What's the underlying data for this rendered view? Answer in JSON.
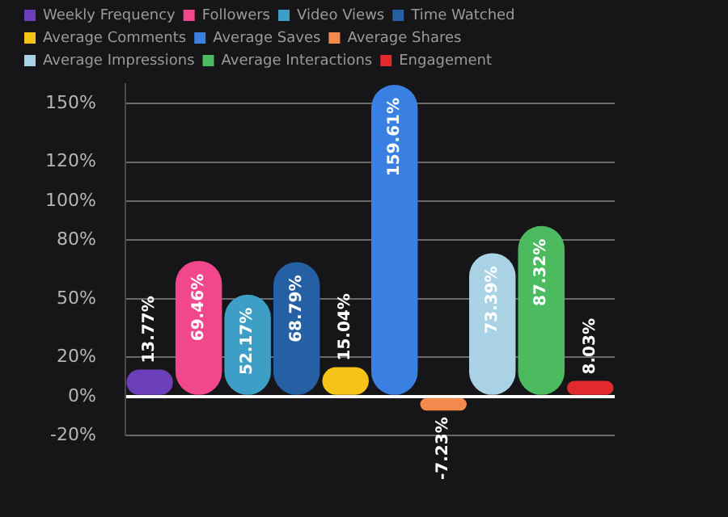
{
  "chart_data": {
    "type": "bar",
    "categories": [
      null,
      null,
      null,
      null,
      null,
      null,
      null,
      null,
      null,
      null
    ],
    "series": [
      {
        "name": "Weekly Frequency",
        "color": "#6b3fb8",
        "values": [
          13.77,
          null,
          null,
          null,
          null,
          null,
          null,
          null,
          null,
          null
        ],
        "value_labels": [
          "13.77%",
          null,
          null,
          null,
          null,
          null,
          null,
          null,
          null,
          null
        ]
      },
      {
        "name": "Followers",
        "color": "#f2478d",
        "values": [
          null,
          69.46,
          null,
          null,
          null,
          null,
          null,
          null,
          null,
          null
        ],
        "value_labels": [
          null,
          "69.46%",
          null,
          null,
          null,
          null,
          null,
          null,
          null,
          null
        ]
      },
      {
        "name": "Video Views",
        "color": "#3d9fc6",
        "values": [
          null,
          null,
          52.17,
          null,
          null,
          null,
          null,
          null,
          null,
          null
        ],
        "value_labels": [
          null,
          null,
          "52.17%",
          null,
          null,
          null,
          null,
          null,
          null,
          null
        ]
      },
      {
        "name": "Time Watched",
        "color": "#2660a4",
        "values": [
          null,
          null,
          null,
          68.79,
          null,
          null,
          null,
          null,
          null,
          null
        ],
        "value_labels": [
          null,
          null,
          null,
          "68.79%",
          null,
          null,
          null,
          null,
          null,
          null
        ]
      },
      {
        "name": "Average Comments",
        "color": "#f6c416",
        "values": [
          null,
          null,
          null,
          null,
          15.04,
          null,
          null,
          null,
          null,
          null
        ],
        "value_labels": [
          null,
          null,
          null,
          null,
          "15.04%",
          null,
          null,
          null,
          null,
          null
        ]
      },
      {
        "name": "Average Saves",
        "color": "#3a80e3",
        "values": [
          null,
          null,
          null,
          null,
          null,
          159.61,
          null,
          null,
          null,
          null
        ],
        "value_labels": [
          null,
          null,
          null,
          null,
          null,
          "159.61%",
          null,
          null,
          null,
          null
        ]
      },
      {
        "name": "Average Shares",
        "color": "#f28a4e",
        "values": [
          null,
          null,
          null,
          null,
          null,
          null,
          -7.23,
          null,
          null,
          null
        ],
        "value_labels": [
          null,
          null,
          null,
          null,
          null,
          null,
          "-7.23%",
          null,
          null,
          null
        ]
      },
      {
        "name": "Average Impressions",
        "color": "#a9d3e4",
        "values": [
          null,
          null,
          null,
          null,
          null,
          null,
          null,
          73.39,
          null,
          null
        ],
        "value_labels": [
          null,
          null,
          null,
          null,
          null,
          null,
          null,
          "73.39%",
          null,
          null
        ]
      },
      {
        "name": "Average Interactions",
        "color": "#4cbb5f",
        "values": [
          null,
          null,
          null,
          null,
          null,
          null,
          null,
          null,
          87.32,
          null
        ],
        "value_labels": [
          null,
          null,
          null,
          null,
          null,
          null,
          null,
          null,
          "87.32%",
          null
        ]
      },
      {
        "name": "Engagement",
        "color": "#e02a2e",
        "values": [
          null,
          null,
          null,
          null,
          null,
          null,
          null,
          null,
          null,
          8.03
        ],
        "value_labels": [
          null,
          null,
          null,
          null,
          null,
          null,
          null,
          null,
          null,
          "8.03%"
        ]
      }
    ],
    "ylim": [
      -20,
      160
    ],
    "yticks": [
      {
        "value": -20,
        "label": "-20%"
      },
      {
        "value": 0,
        "label": "0%"
      },
      {
        "value": 20,
        "label": "20%"
      },
      {
        "value": 50,
        "label": "50%"
      },
      {
        "value": 80,
        "label": "80%"
      },
      {
        "value": 100,
        "label": "100%"
      },
      {
        "value": 120,
        "label": "120%"
      },
      {
        "value": 150,
        "label": "150%"
      }
    ],
    "grid": "y",
    "legend": "top"
  }
}
